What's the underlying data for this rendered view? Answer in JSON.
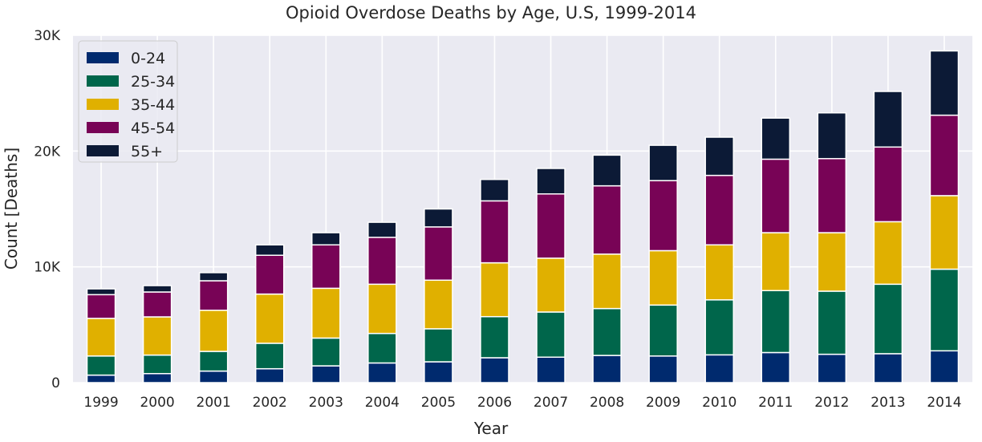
{
  "chart_data": {
    "type": "bar",
    "stacked": true,
    "title": "Opioid Overdose Deaths by Age, U.S, 1999-2014",
    "xlabel": "Year",
    "ylabel": "Count [Deaths]",
    "ylim": [
      0,
      30000
    ],
    "yticks": [
      0,
      10000,
      20000,
      30000
    ],
    "ytick_labels": [
      "0",
      "10K",
      "20K",
      "30K"
    ],
    "grid": true,
    "legend_position": "top-left",
    "categories": [
      "1999",
      "2000",
      "2001",
      "2002",
      "2003",
      "2004",
      "2005",
      "2006",
      "2007",
      "2008",
      "2009",
      "2010",
      "2011",
      "2012",
      "2013",
      "2014"
    ],
    "series": [
      {
        "name": "0-24",
        "color": "#002a6e",
        "values": [
          650,
          780,
          1000,
          1200,
          1450,
          1700,
          1800,
          2150,
          2200,
          2350,
          2300,
          2400,
          2600,
          2450,
          2500,
          2750
        ]
      },
      {
        "name": "25-34",
        "color": "#00664b",
        "values": [
          1650,
          1600,
          1700,
          2200,
          2400,
          2550,
          2850,
          3550,
          3900,
          4050,
          4400,
          4750,
          5350,
          5450,
          6000,
          7050
        ]
      },
      {
        "name": "35-44",
        "color": "#e0b000",
        "values": [
          3250,
          3300,
          3550,
          4250,
          4300,
          4250,
          4200,
          4650,
          4650,
          4700,
          4700,
          4750,
          5000,
          5050,
          5400,
          6350
        ]
      },
      {
        "name": "45-54",
        "color": "#780356",
        "values": [
          2050,
          2150,
          2550,
          3350,
          3750,
          4050,
          4600,
          5350,
          5550,
          5900,
          6050,
          6000,
          6350,
          6400,
          6450,
          6950
        ]
      },
      {
        "name": "55+",
        "color": "#0c1a36",
        "values": [
          500,
          550,
          700,
          900,
          1050,
          1300,
          1550,
          1850,
          2200,
          2650,
          3050,
          3300,
          3550,
          3950,
          4800,
          5550
        ]
      }
    ]
  }
}
